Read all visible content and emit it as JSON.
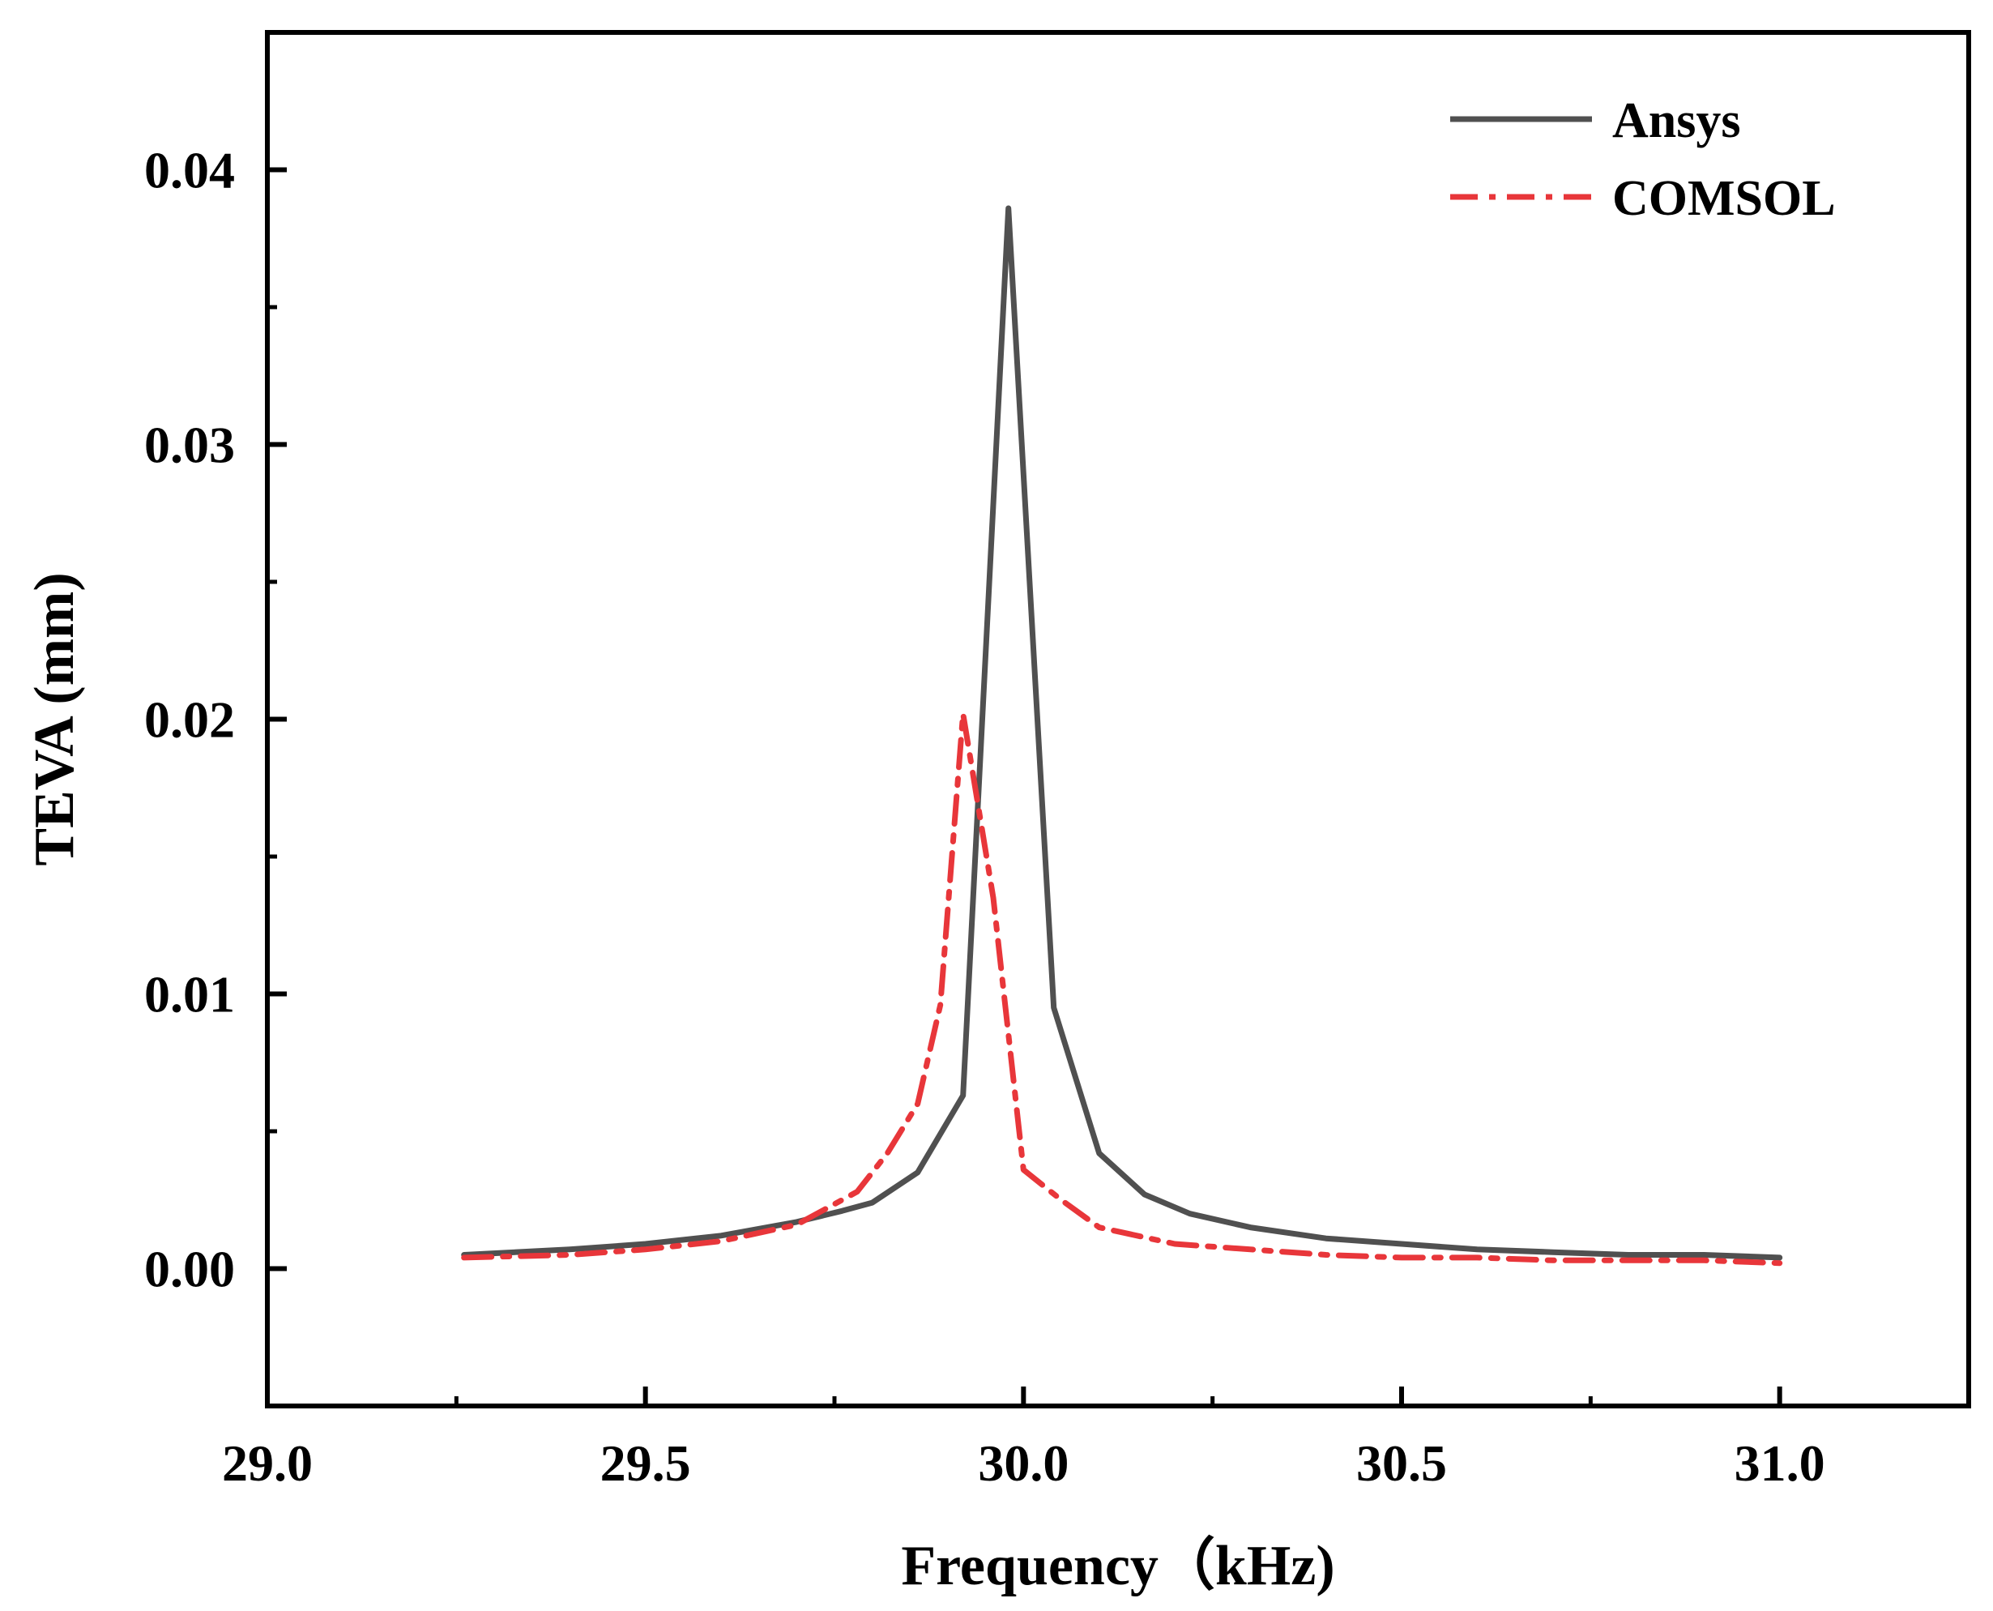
{
  "chart_data": {
    "type": "line",
    "title": "",
    "xlabel": "Frequency（kHz)",
    "ylabel": "TEVA (mm)",
    "xlim": [
      29.0,
      31.25
    ],
    "ylim": [
      -0.005,
      0.045
    ],
    "xticks": [
      29.0,
      29.5,
      30.0,
      30.5,
      31.0
    ],
    "xtick_labels": [
      "29.0",
      "29.5",
      "30.0",
      "30.5",
      "31.0"
    ],
    "yticks": [
      0.0,
      0.01,
      0.02,
      0.03,
      0.04
    ],
    "ytick_labels": [
      "0.00",
      "0.01",
      "0.02",
      "0.03",
      "0.04"
    ],
    "grid": false,
    "legend_position": "top-right",
    "series": [
      {
        "name": "Ansys",
        "color": "#505050",
        "dash": "solid",
        "x": [
          29.26,
          29.4,
          29.5,
          29.6,
          29.7,
          29.76,
          29.8,
          29.86,
          29.92,
          29.98,
          30.04,
          30.1,
          30.16,
          30.22,
          30.3,
          30.4,
          30.5,
          30.6,
          30.7,
          30.8,
          30.9,
          31.0
        ],
        "y": [
          0.0005,
          0.0007,
          0.0009,
          0.0012,
          0.0017,
          0.0021,
          0.0024,
          0.0035,
          0.0063,
          0.0386,
          0.0095,
          0.0042,
          0.0027,
          0.002,
          0.0015,
          0.0011,
          0.0009,
          0.0007,
          0.0006,
          0.0005,
          0.0005,
          0.0004
        ]
      },
      {
        "name": "COMSOL",
        "color": "#e8363a",
        "dash": "dashdot",
        "x": [
          29.26,
          29.4,
          29.5,
          29.6,
          29.7,
          29.78,
          29.82,
          29.86,
          29.89,
          29.92,
          29.96,
          30.0,
          30.05,
          30.1,
          30.2,
          30.3,
          30.4,
          30.5,
          30.6,
          30.7,
          30.8,
          30.9,
          31.0
        ],
        "y": [
          0.0004,
          0.0005,
          0.0007,
          0.001,
          0.0016,
          0.0028,
          0.0042,
          0.006,
          0.0096,
          0.0202,
          0.0135,
          0.0036,
          0.0025,
          0.0015,
          0.0009,
          0.0007,
          0.0005,
          0.0004,
          0.0004,
          0.0003,
          0.0003,
          0.0003,
          0.0002
        ]
      }
    ]
  }
}
